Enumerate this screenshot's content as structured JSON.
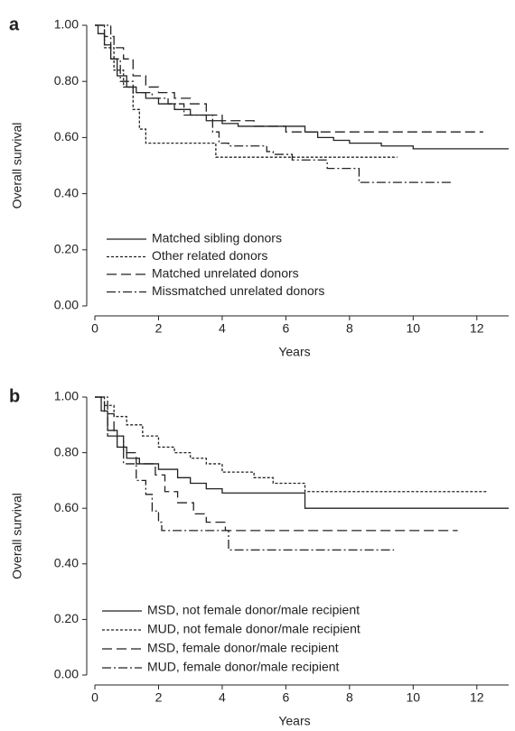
{
  "chart_data": [
    {
      "type": "step",
      "panel": "a",
      "x_label": "Years",
      "y_label": "Overall survival",
      "xlim": [
        0,
        13
      ],
      "ylim": [
        0,
        1
      ],
      "xticks": [
        0,
        2,
        4,
        6,
        8,
        10,
        12
      ],
      "yticks": [
        {
          "value": 0,
          "label": "0.00"
        },
        {
          "value": 0.2,
          "label": "0.20"
        },
        {
          "value": 0.4,
          "label": "0.40"
        },
        {
          "value": 0.6,
          "label": "0.60"
        },
        {
          "value": 0.8,
          "label": "0.80"
        },
        {
          "value": 1,
          "label": "1.00"
        }
      ],
      "series": [
        {
          "name": "Matched sibling donors",
          "color": "#222",
          "dash": "none",
          "x": [
            0,
            0.1,
            0.3,
            0.5,
            0.7,
            1.0,
            1.3,
            1.6,
            2.0,
            2.5,
            3.0,
            3.5,
            4.0,
            4.5,
            6.6,
            7.0,
            7.5,
            8.0,
            9.0,
            10.0,
            13.0
          ],
          "values": [
            1.0,
            0.97,
            0.93,
            0.88,
            0.82,
            0.78,
            0.76,
            0.74,
            0.72,
            0.7,
            0.68,
            0.66,
            0.65,
            0.64,
            0.62,
            0.6,
            0.59,
            0.58,
            0.57,
            0.56,
            0.56
          ]
        },
        {
          "name": "Other related donors",
          "color": "#222",
          "dash": "3,2",
          "x": [
            0,
            0.3,
            0.6,
            0.9,
            1.2,
            1.4,
            1.6,
            3.8,
            9.5
          ],
          "values": [
            1.0,
            0.92,
            0.84,
            0.78,
            0.7,
            0.63,
            0.58,
            0.53,
            0.53
          ]
        },
        {
          "name": "Matched unrelated donors",
          "color": "#222",
          "dash": "11,5",
          "x": [
            0,
            0.3,
            0.6,
            0.9,
            1.2,
            1.6,
            2.0,
            2.5,
            3.0,
            3.5,
            4.0,
            5.0,
            6.0,
            12.2
          ],
          "values": [
            1.0,
            0.96,
            0.92,
            0.88,
            0.82,
            0.78,
            0.76,
            0.74,
            0.72,
            0.68,
            0.66,
            0.64,
            0.62,
            0.62
          ]
        },
        {
          "name": "Missmatched unrelated donors",
          "color": "#222",
          "dash": "10,3,2,3",
          "x": [
            0,
            0.5,
            0.8,
            1.2,
            1.8,
            2.3,
            2.8,
            3.7,
            3.9,
            4.2,
            5.4,
            5.6,
            6.2,
            7.3,
            8.3,
            11.2
          ],
          "values": [
            1.0,
            0.88,
            0.8,
            0.76,
            0.74,
            0.72,
            0.68,
            0.62,
            0.58,
            0.57,
            0.55,
            0.54,
            0.52,
            0.49,
            0.44,
            0.44
          ]
        }
      ]
    },
    {
      "type": "step",
      "panel": "b",
      "x_label": "Years",
      "y_label": "Overall survival",
      "xlim": [
        0,
        13
      ],
      "ylim": [
        0,
        1
      ],
      "xticks": [
        0,
        2,
        4,
        6,
        8,
        10,
        12
      ],
      "yticks": [
        {
          "value": 0,
          "label": "0.00"
        },
        {
          "value": 0.2,
          "label": "0.20"
        },
        {
          "value": 0.4,
          "label": "0.40"
        },
        {
          "value": 0.6,
          "label": "0.60"
        },
        {
          "value": 0.8,
          "label": "0.80"
        },
        {
          "value": 1,
          "label": "1.00"
        }
      ],
      "series": [
        {
          "name": "MSD, not female donor/male recipient",
          "color": "#222",
          "dash": "none",
          "x": [
            0,
            0.2,
            0.4,
            0.7,
            1.0,
            1.4,
            2.0,
            2.6,
            3.0,
            3.5,
            4.0,
            6.6,
            13.0
          ],
          "values": [
            1.0,
            0.95,
            0.88,
            0.82,
            0.78,
            0.76,
            0.74,
            0.71,
            0.69,
            0.67,
            0.655,
            0.6,
            0.6
          ]
        },
        {
          "name": "MUD, not female donor/male recipient",
          "color": "#222",
          "dash": "3,2",
          "x": [
            0,
            0.3,
            0.6,
            1.0,
            1.5,
            2.0,
            2.5,
            3.0,
            3.5,
            4.0,
            5.0,
            5.6,
            6.6,
            12.3
          ],
          "values": [
            1.0,
            0.97,
            0.93,
            0.9,
            0.86,
            0.82,
            0.8,
            0.78,
            0.76,
            0.73,
            0.71,
            0.69,
            0.66,
            0.66
          ]
        },
        {
          "name": "MSD, female donor/male recipient",
          "color": "#222",
          "dash": "11,5",
          "x": [
            0,
            0.3,
            0.6,
            0.9,
            1.3,
            1.9,
            2.2,
            2.6,
            3.1,
            3.5,
            4.1,
            11.4
          ],
          "values": [
            1.0,
            0.94,
            0.86,
            0.8,
            0.76,
            0.72,
            0.66,
            0.62,
            0.58,
            0.55,
            0.52,
            0.52
          ]
        },
        {
          "name": "MUD, female donor/male recipient",
          "color": "#222",
          "dash": "10,3,2,3",
          "x": [
            0,
            0.4,
            0.9,
            1.3,
            1.6,
            1.8,
            2.0,
            2.1,
            3.3,
            4.2,
            9.4
          ],
          "values": [
            1.0,
            0.86,
            0.76,
            0.7,
            0.65,
            0.59,
            0.55,
            0.52,
            0.52,
            0.45,
            0.45
          ]
        }
      ]
    }
  ]
}
